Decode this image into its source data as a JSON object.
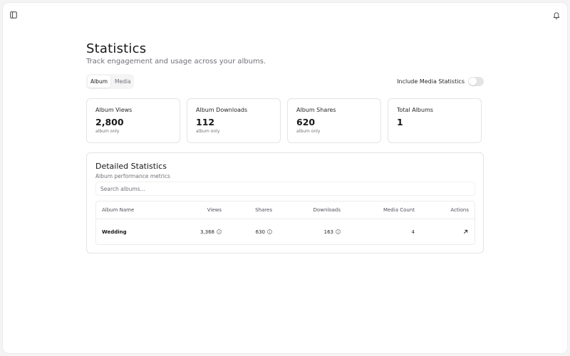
{
  "header": {
    "sidebar_toggle_icon": "sidebar-toggle-icon",
    "notifications_icon": "bell-icon"
  },
  "page": {
    "title": "Statistics",
    "subtitle": "Track engagement and usage across your albums."
  },
  "view_tabs": [
    {
      "label": "Album",
      "active": true
    },
    {
      "label": "Media",
      "active": false
    }
  ],
  "media_toggle": {
    "label": "Include Media Statistics",
    "enabled": false
  },
  "stat_cards": [
    {
      "title": "Album Views",
      "value": "2,800",
      "sub": "album only"
    },
    {
      "title": "Album Downloads",
      "value": "112",
      "sub": "album only"
    },
    {
      "title": "Album Shares",
      "value": "620",
      "sub": "album only"
    },
    {
      "title": "Total Albums",
      "value": "1",
      "sub": ""
    }
  ],
  "details": {
    "title": "Detailed Statistics",
    "subtitle": "Album performance metrics",
    "search_placeholder": "Search albums...",
    "columns": [
      "Album Name",
      "Views",
      "Shares",
      "Downloads",
      "Media Count",
      "Actions"
    ],
    "rows": [
      {
        "name": "Wedding",
        "views": "3,368",
        "shares": "630",
        "downloads": "163",
        "media_count": "4",
        "action_icon": "arrow-up-right-icon"
      }
    ]
  },
  "colors": {
    "background": "#f4f4f5",
    "surface": "#ffffff",
    "border": "#e4e4e7",
    "text_primary": "#18181b",
    "text_muted": "#71717a"
  }
}
